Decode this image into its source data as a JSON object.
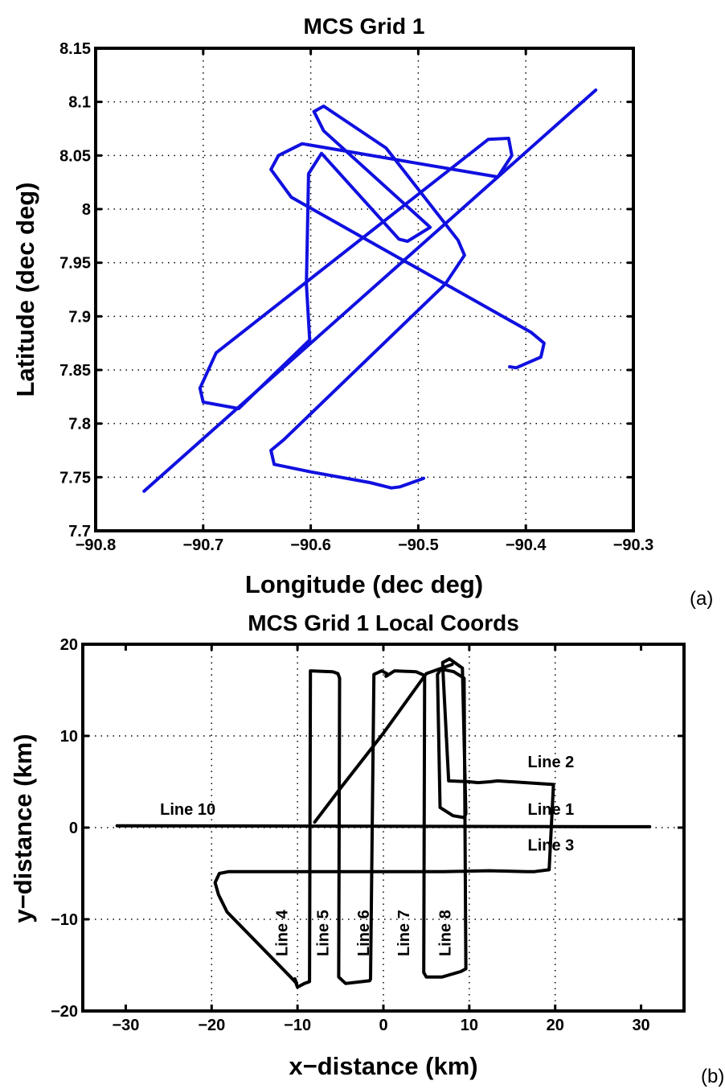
{
  "chart_data": [
    {
      "type": "line",
      "title": "MCS Grid 1",
      "xlabel": "Longitude (dec deg)",
      "ylabel": "Latitude (dec deg)",
      "panel_label": "(a)",
      "xlim": [
        -90.8,
        -90.3
      ],
      "ylim": [
        7.7,
        8.15
      ],
      "xticks": [
        -90.8,
        -90.7,
        -90.6,
        -90.5,
        -90.4,
        -90.3
      ],
      "xtick_labels": [
        "−90.8",
        "−90.7",
        "−90.6",
        "−90.5",
        "−90.4",
        "−90.3"
      ],
      "yticks": [
        7.7,
        7.75,
        7.8,
        7.85,
        7.9,
        7.95,
        8,
        8.05,
        8.1,
        8.15
      ],
      "ytick_labels": [
        "7.7",
        "7.75",
        "7.8",
        "7.85",
        "7.9",
        "7.95",
        "8",
        "8.05",
        "8.1",
        "8.15"
      ],
      "grid": true,
      "line_color": "#1010e0",
      "series": [
        {
          "x": [
            -90.755,
            -90.335
          ],
          "y": [
            7.737,
            8.111
          ]
        },
        {
          "x": [
            -90.495,
            -90.517,
            -90.525,
            -90.545,
            -90.6,
            -90.634,
            -90.637,
            -90.625,
            -90.475,
            -90.457,
            -90.463,
            -90.53,
            -90.588,
            -90.597,
            -90.588,
            -90.491,
            -90.489,
            -90.51,
            -90.518,
            -90.59,
            -90.602,
            -90.604,
            -90.601,
            -90.667,
            -90.7,
            -90.703,
            -90.688,
            -90.435,
            -90.416,
            -90.413,
            -90.426,
            -90.608,
            -90.63,
            -90.637,
            -90.618,
            -90.395,
            -90.383,
            -90.386,
            -90.409,
            -90.415
          ],
          "y": [
            7.749,
            7.741,
            7.74,
            7.745,
            7.755,
            7.762,
            7.775,
            7.785,
            7.93,
            7.957,
            7.971,
            8.057,
            8.096,
            8.091,
            8.073,
            7.985,
            7.983,
            7.97,
            7.972,
            8.052,
            8.033,
            7.93,
            7.878,
            7.814,
            7.82,
            7.833,
            7.866,
            8.065,
            8.066,
            8.05,
            8.03,
            8.061,
            8.05,
            8.037,
            8.011,
            7.885,
            7.875,
            7.862,
            7.852,
            7.853
          ]
        }
      ]
    },
    {
      "type": "line",
      "title": "MCS Grid 1 Local Coords",
      "xlabel": "x−distance (km)",
      "ylabel": "y−distance (km)",
      "panel_label": "(b)",
      "xlim": [
        -35,
        35
      ],
      "ylim": [
        -20,
        20
      ],
      "xticks": [
        -30,
        -20,
        -10,
        0,
        10,
        20,
        30
      ],
      "xtick_labels": [
        "−30",
        "−20",
        "−10",
        "0",
        "10",
        "20",
        "30"
      ],
      "yticks": [
        -20,
        -10,
        0,
        10,
        20
      ],
      "ytick_labels": [
        "−20",
        "−10",
        "0",
        "10",
        "20"
      ],
      "grid": true,
      "line_color": "#000000",
      "series": [
        {
          "x": [
            -31,
            31
          ],
          "y": [
            0.2,
            0.1
          ]
        },
        {
          "x": [
            -8,
            -5,
            0,
            5,
            8
          ],
          "y": [
            0.6,
            4.3,
            10.3,
            16.8,
            17.8
          ]
        },
        {
          "x": [
            -10.3,
            -10.2,
            -10,
            -9.2,
            -8.6,
            -8.5,
            -8.5,
            -5.9,
            -5.3,
            -5.1,
            -5.2,
            -4.4,
            -1.6,
            -1.5,
            -1.1,
            -0.2,
            0.4,
            0.3,
            1.3,
            3.8,
            4.8,
            4.7,
            5.0,
            6.8,
            9.0,
            9.6,
            9.4,
            8.2,
            6.7,
            6.3,
            6.6,
            8.1,
            9.4,
            9.6,
            9.2,
            7.7,
            6.9,
            7.0,
            7.6,
            10.0,
            11.0,
            12.4,
            13.3,
            19.8,
            19.3,
            17.6,
            16.7,
            12.3,
            7.0,
            -18.0,
            -19.1,
            -19.6,
            -19.2,
            -18.2,
            -10.8,
            -10.1,
            -10.3
          ],
          "y": [
            -16.5,
            -16.9,
            -17.4,
            -17.0,
            -16.8,
            16.5,
            17.1,
            17.0,
            16.8,
            16.3,
            -16.3,
            -17.0,
            -16.7,
            -16.5,
            16.7,
            17.1,
            16.8,
            16.5,
            17.1,
            17.0,
            16.6,
            -15.8,
            -16.3,
            -16.3,
            -15.7,
            -15.4,
            16.3,
            17.0,
            17.3,
            16.7,
            2.2,
            1.3,
            1.1,
            1.5,
            17.4,
            18.4,
            18.0,
            15.9,
            5.1,
            5.0,
            4.9,
            5.0,
            5.1,
            4.7,
            -4.6,
            -4.8,
            -4.8,
            -4.7,
            -4.8,
            -4.8,
            -5.0,
            -6.0,
            -7.3,
            -9.2,
            -16.3,
            -17.0,
            -16.5
          ]
        }
      ],
      "annotations": [
        {
          "text": "Line 10",
          "x": -26,
          "y": 1.4,
          "rotate": 0
        },
        {
          "text": "Line 2",
          "x": 16.8,
          "y": 6.6,
          "rotate": 0
        },
        {
          "text": "Line 1",
          "x": 16.8,
          "y": 1.4,
          "rotate": 0
        },
        {
          "text": "Line 3",
          "x": 16.8,
          "y": -2.5,
          "rotate": 0
        },
        {
          "text": "Line 4",
          "x": -11.2,
          "y": -11.5,
          "rotate": -90
        },
        {
          "text": "Line 5",
          "x": -6.4,
          "y": -11.5,
          "rotate": -90
        },
        {
          "text": "Line 6",
          "x": -1.7,
          "y": -11.5,
          "rotate": -90
        },
        {
          "text": "Line 7",
          "x": 3.0,
          "y": -11.5,
          "rotate": -90
        },
        {
          "text": "Line 8",
          "x": 7.8,
          "y": -11.5,
          "rotate": -90
        }
      ]
    }
  ]
}
